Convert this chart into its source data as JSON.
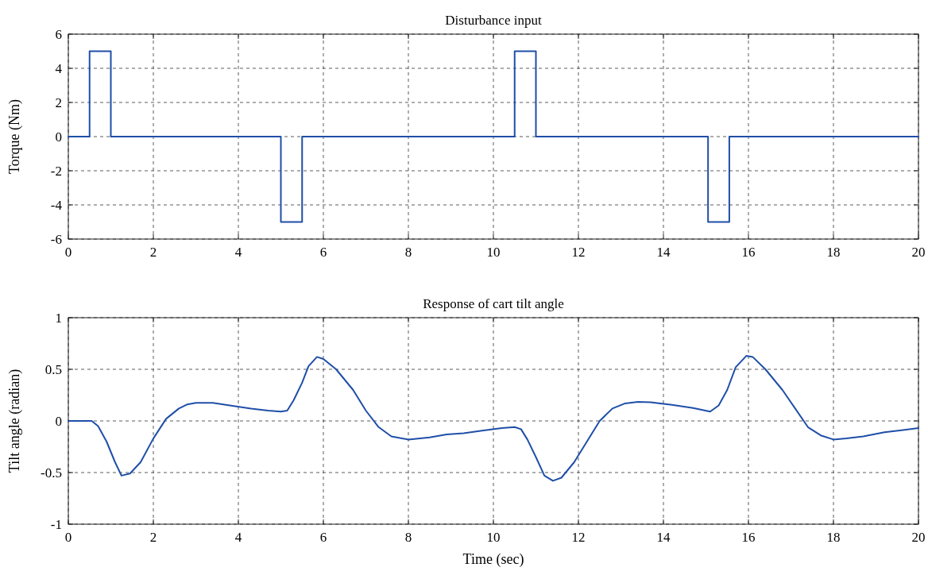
{
  "chart_data": [
    {
      "type": "line",
      "title": "Disturbance input",
      "ylabel": "Torque (Nm)",
      "xlim": [
        0,
        20
      ],
      "xticks": [
        0,
        2,
        4,
        6,
        8,
        10,
        12,
        14,
        16,
        18,
        20
      ],
      "ylim": [
        -6,
        6
      ],
      "yticks": [
        -6,
        -4,
        -2,
        0,
        2,
        4,
        6
      ],
      "grid": true,
      "series": [
        {
          "color": "#1f4fa8",
          "x": [
            0,
            0.5,
            0.5,
            1,
            1,
            5,
            5,
            5.5,
            5.5,
            10.5,
            10.5,
            11,
            11,
            15.05,
            15.05,
            15.55,
            15.55,
            20
          ],
          "values": [
            0,
            0,
            5,
            5,
            0,
            0,
            -5,
            -5,
            0,
            0,
            5,
            5,
            0,
            0,
            -5,
            -5,
            0,
            0
          ]
        }
      ]
    },
    {
      "type": "line",
      "title": "Response of cart tilt angle",
      "xlabel": "Time (sec)",
      "ylabel": "Tilt angle (radian)",
      "xlim": [
        0,
        20
      ],
      "xticks": [
        0,
        2,
        4,
        6,
        8,
        10,
        12,
        14,
        16,
        18,
        20
      ],
      "ylim": [
        -1,
        1
      ],
      "yticks": [
        -1,
        -0.5,
        0,
        0.5,
        1
      ],
      "grid": true,
      "series": [
        {
          "color": "#1f4fa8",
          "x": [
            0,
            0.55,
            0.7,
            0.9,
            1.1,
            1.25,
            1.45,
            1.7,
            2,
            2.3,
            2.6,
            2.8,
            3,
            3.4,
            3.8,
            4.3,
            4.7,
            5,
            5.15,
            5.3,
            5.5,
            5.65,
            5.85,
            6,
            6.3,
            6.7,
            7,
            7.3,
            7.6,
            8,
            8.5,
            8.9,
            9.3,
            9.8,
            10.2,
            10.5,
            10.65,
            10.8,
            11,
            11.2,
            11.4,
            11.6,
            11.9,
            12.2,
            12.5,
            12.8,
            13.1,
            13.4,
            13.7,
            14.2,
            14.7,
            15.1,
            15.3,
            15.5,
            15.7,
            15.95,
            16.1,
            16.4,
            16.8,
            17.1,
            17.4,
            17.7,
            18,
            18.3,
            18.7,
            19.2,
            19.6,
            20
          ],
          "values": [
            0,
            0,
            -0.05,
            -0.2,
            -0.4,
            -0.53,
            -0.51,
            -0.4,
            -0.17,
            0.02,
            0.12,
            0.16,
            0.175,
            0.175,
            0.15,
            0.12,
            0.1,
            0.09,
            0.1,
            0.2,
            0.37,
            0.53,
            0.62,
            0.6,
            0.5,
            0.3,
            0.1,
            -0.06,
            -0.15,
            -0.18,
            -0.16,
            -0.13,
            -0.12,
            -0.09,
            -0.07,
            -0.06,
            -0.08,
            -0.18,
            -0.35,
            -0.53,
            -0.58,
            -0.55,
            -0.4,
            -0.2,
            0,
            0.12,
            0.17,
            0.185,
            0.18,
            0.155,
            0.125,
            0.09,
            0.15,
            0.3,
            0.52,
            0.63,
            0.62,
            0.5,
            0.3,
            0.12,
            -0.06,
            -0.14,
            -0.18,
            -0.17,
            -0.15,
            -0.11,
            -0.09,
            -0.07
          ]
        }
      ]
    }
  ]
}
